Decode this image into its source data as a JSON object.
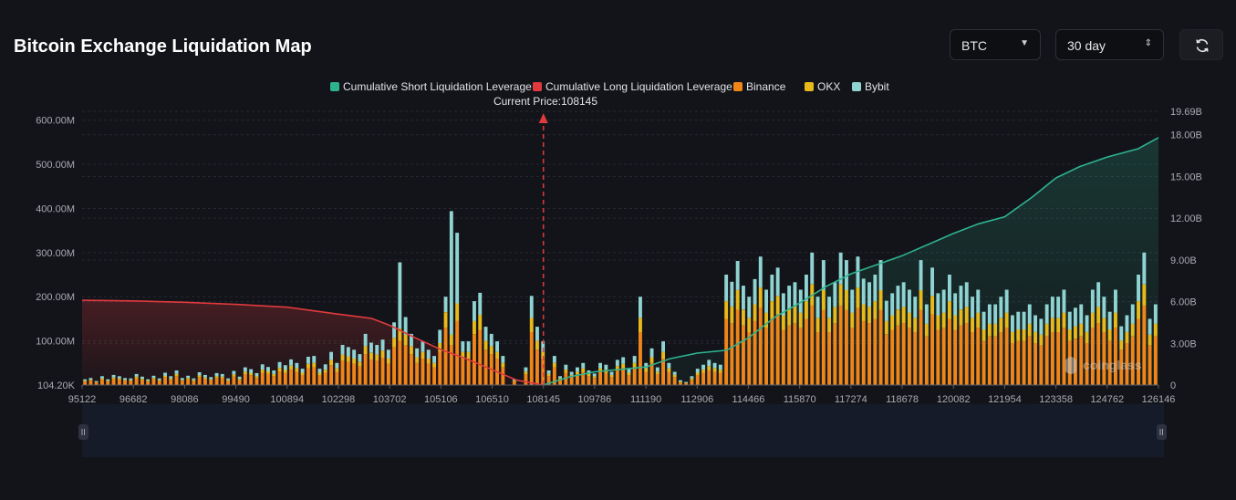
{
  "header": {
    "title": "Bitcoin Exchange Liquidation Map"
  },
  "controls": {
    "asset": "BTC",
    "range": "30 day"
  },
  "colors": {
    "short": "#2eb38f",
    "long": "#e03a3e",
    "binance": "#f08519",
    "okx": "#e8b91a",
    "bybit": "#8fd3d2"
  },
  "chart_data": {
    "type": "bar",
    "title": "Bitcoin Exchange Liquidation Map",
    "current_price_label": "Current Price:108145",
    "current_price": 108145,
    "legend": [
      {
        "key": "short",
        "label": "Cumulative Short Liquidation Leverage"
      },
      {
        "key": "long",
        "label": "Cumulative Long Liquidation Leverage"
      },
      {
        "key": "binance",
        "label": "Binance"
      },
      {
        "key": "okx",
        "label": "OKX"
      },
      {
        "key": "bybit",
        "label": "Bybit"
      }
    ],
    "x_ticks": [
      "95122",
      "96682",
      "98086",
      "99490",
      "100894",
      "102298",
      "103702",
      "105106",
      "106510",
      "108145",
      "109786",
      "111190",
      "112906",
      "114466",
      "115870",
      "117274",
      "118678",
      "120082",
      "121954",
      "123358",
      "124762",
      "126146"
    ],
    "y_left_ticks": [
      "104.20K",
      "100.00M",
      "200.00M",
      "300.00M",
      "400.00M",
      "500.00M",
      "600.00M"
    ],
    "y_left_max": 620,
    "y_left_unit": "M",
    "y_right_ticks": [
      "0",
      "3.00B",
      "6.00B",
      "9.00B",
      "12.00B",
      "15.00B",
      "18.00B",
      "19.69B"
    ],
    "y_right_max": 19.69,
    "y_right_unit": "B",
    "cum_long_points": [
      [
        95122,
        6.1
      ],
      [
        96682,
        6.05
      ],
      [
        98086,
        5.95
      ],
      [
        99490,
        5.8
      ],
      [
        100894,
        5.6
      ],
      [
        102298,
        5.1
      ],
      [
        103200,
        4.8
      ],
      [
        103702,
        4.3
      ],
      [
        104400,
        3.4
      ],
      [
        105106,
        2.55
      ],
      [
        105800,
        1.9
      ],
      [
        106510,
        1.1
      ],
      [
        107300,
        0.35
      ],
      [
        108145,
        0
      ]
    ],
    "cum_short_points": [
      [
        108145,
        0
      ],
      [
        109000,
        0.6
      ],
      [
        109786,
        0.95
      ],
      [
        111190,
        1.3
      ],
      [
        112000,
        1.9
      ],
      [
        112906,
        2.3
      ],
      [
        113800,
        2.5
      ],
      [
        114466,
        3.4
      ],
      [
        115200,
        4.9
      ],
      [
        115870,
        5.9
      ],
      [
        116600,
        7.1
      ],
      [
        117274,
        8.0
      ],
      [
        118678,
        9.3
      ],
      [
        120082,
        10.9
      ],
      [
        121000,
        11.6
      ],
      [
        121954,
        12.1
      ],
      [
        122700,
        13.5
      ],
      [
        123358,
        14.9
      ],
      [
        124000,
        15.7
      ],
      [
        124762,
        16.4
      ],
      [
        125600,
        17.0
      ],
      [
        126146,
        17.8
      ]
    ],
    "bars": {
      "binance": [
        8,
        10,
        6,
        12,
        8,
        14,
        12,
        10,
        9,
        15,
        11,
        8,
        13,
        9,
        17,
        12,
        20,
        10,
        13,
        9,
        18,
        14,
        11,
        16,
        15,
        9,
        19,
        11,
        24,
        22,
        16,
        28,
        25,
        20,
        31,
        27,
        35,
        30,
        22,
        38,
        40,
        22,
        28,
        45,
        30,
        55,
        52,
        48,
        42,
        70,
        58,
        55,
        62,
        48,
        85,
        100,
        90,
        70,
        50,
        60,
        48,
        40,
        75,
        130,
        90,
        145,
        60,
        60,
        115,
        125,
        80,
        70,
        60,
        40,
        0,
        8,
        0,
        24,
        120,
        80,
        60,
        20,
        40,
        12,
        28,
        18,
        24,
        30,
        20,
        16,
        30,
        28,
        18,
        34,
        38,
        22,
        40,
        120,
        30,
        50,
        24,
        60,
        30,
        18,
        6,
        4,
        12,
        22,
        28,
        34,
        30,
        28,
        150,
        140,
        170,
        135,
        120,
        145,
        175,
        130,
        150,
        160,
        125,
        135,
        140,
        130,
        150,
        180,
        120,
        170,
        120,
        140,
        180,
        170,
        130,
        175,
        145,
        140,
        150,
        170,
        115,
        125,
        135,
        140,
        130,
        120,
        170,
        110,
        160,
        125,
        130,
        150,
        125,
        135,
        140,
        120,
        130,
        100,
        110,
        110,
        120,
        130,
        95,
        100,
        100,
        110,
        95,
        90,
        110,
        120,
        120,
        130,
        100,
        105,
        110,
        95,
        130,
        140,
        120,
        100,
        130,
        80,
        95,
        110,
        150,
        180,
        90,
        110
      ],
      "okx": [
        2,
        2,
        1,
        3,
        2,
        3,
        3,
        2,
        2,
        4,
        3,
        2,
        3,
        2,
        4,
        3,
        5,
        2,
        3,
        2,
        4,
        3,
        2,
        4,
        4,
        2,
        5,
        3,
        6,
        5,
        4,
        7,
        6,
        5,
        8,
        7,
        9,
        8,
        6,
        10,
        10,
        6,
        7,
        12,
        8,
        14,
        13,
        12,
        11,
        18,
        15,
        14,
        16,
        12,
        22,
        28,
        24,
        18,
        13,
        15,
        12,
        10,
        20,
        35,
        24,
        40,
        15,
        15,
        30,
        34,
        20,
        18,
        15,
        10,
        0,
        2,
        0,
        6,
        32,
        20,
        15,
        5,
        10,
        3,
        7,
        5,
        6,
        8,
        5,
        4,
        8,
        7,
        5,
        9,
        10,
        6,
        10,
        32,
        8,
        13,
        6,
        15,
        8,
        5,
        2,
        1,
        3,
        6,
        7,
        9,
        8,
        7,
        40,
        38,
        45,
        36,
        32,
        38,
        46,
        34,
        40,
        42,
        33,
        36,
        37,
        34,
        40,
        48,
        32,
        45,
        32,
        37,
        48,
        45,
        34,
        46,
        38,
        37,
        40,
        45,
        30,
        33,
        36,
        37,
        34,
        32,
        45,
        29,
        42,
        33,
        34,
        40,
        33,
        36,
        37,
        32,
        34,
        26,
        29,
        29,
        32,
        34,
        25,
        26,
        26,
        29,
        25,
        24,
        29,
        32,
        32,
        34,
        26,
        28,
        29,
        25,
        34,
        37,
        32,
        26,
        34,
        21,
        25,
        29,
        40,
        48,
        24,
        29
      ],
      "bybit": [
        3,
        4,
        2,
        5,
        3,
        6,
        5,
        4,
        4,
        6,
        5,
        3,
        5,
        4,
        7,
        5,
        8,
        4,
        5,
        4,
        7,
        6,
        5,
        7,
        6,
        4,
        8,
        5,
        10,
        9,
        7,
        12,
        10,
        8,
        13,
        11,
        14,
        12,
        9,
        16,
        16,
        9,
        12,
        18,
        12,
        22,
        21,
        20,
        17,
        28,
        23,
        22,
        25,
        20,
        35,
        150,
        40,
        28,
        20,
        24,
        20,
        16,
        30,
        35,
        280,
        160,
        24,
        24,
        45,
        50,
        32,
        28,
        24,
        16,
        0,
        3,
        0,
        10,
        50,
        32,
        24,
        8,
        16,
        5,
        11,
        7,
        10,
        12,
        8,
        6,
        12,
        11,
        7,
        14,
        15,
        9,
        16,
        48,
        12,
        20,
        10,
        24,
        12,
        7,
        3,
        2,
        5,
        9,
        11,
        14,
        12,
        11,
        60,
        56,
        66,
        54,
        48,
        57,
        70,
        52,
        60,
        64,
        50,
        54,
        56,
        52,
        60,
        72,
        48,
        68,
        48,
        56,
        72,
        68,
        52,
        70,
        58,
        56,
        60,
        68,
        46,
        50,
        54,
        56,
        52,
        48,
        68,
        44,
        64,
        50,
        52,
        60,
        50,
        54,
        56,
        48,
        52,
        40,
        44,
        44,
        48,
        52,
        38,
        40,
        40,
        44,
        38,
        36,
        44,
        48,
        48,
        52,
        40,
        42,
        44,
        38,
        52,
        56,
        48,
        40,
        52,
        32,
        38,
        44,
        60,
        72,
        36,
        44
      ]
    }
  }
}
